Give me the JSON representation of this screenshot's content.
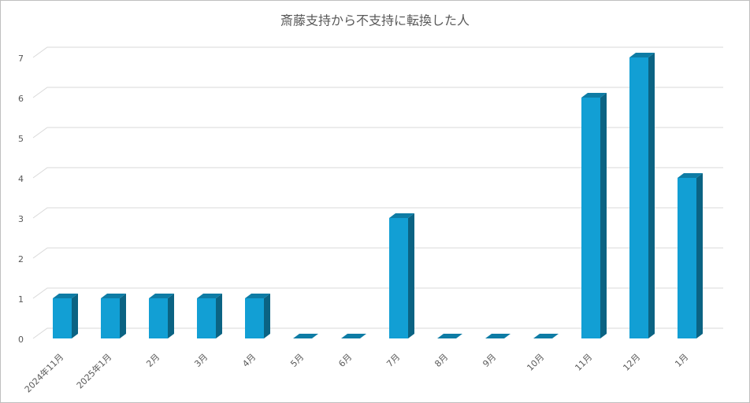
{
  "chart_data": {
    "type": "bar",
    "title": "斎藤支持から不支持に転換した人",
    "categories": [
      "2024年11月",
      "2025年1月",
      "2月",
      "3月",
      "4月",
      "5月",
      "6月",
      "7月",
      "8月",
      "9月",
      "10月",
      "11月",
      "12月",
      "1月"
    ],
    "values": [
      1,
      1,
      1,
      1,
      1,
      0,
      0,
      3,
      0,
      0,
      0,
      6,
      7,
      4
    ],
    "color": "#129fd4",
    "ylim": [
      0,
      7
    ],
    "yticks": [
      0,
      1,
      2,
      3,
      4,
      5,
      6,
      7
    ],
    "grid": true
  }
}
